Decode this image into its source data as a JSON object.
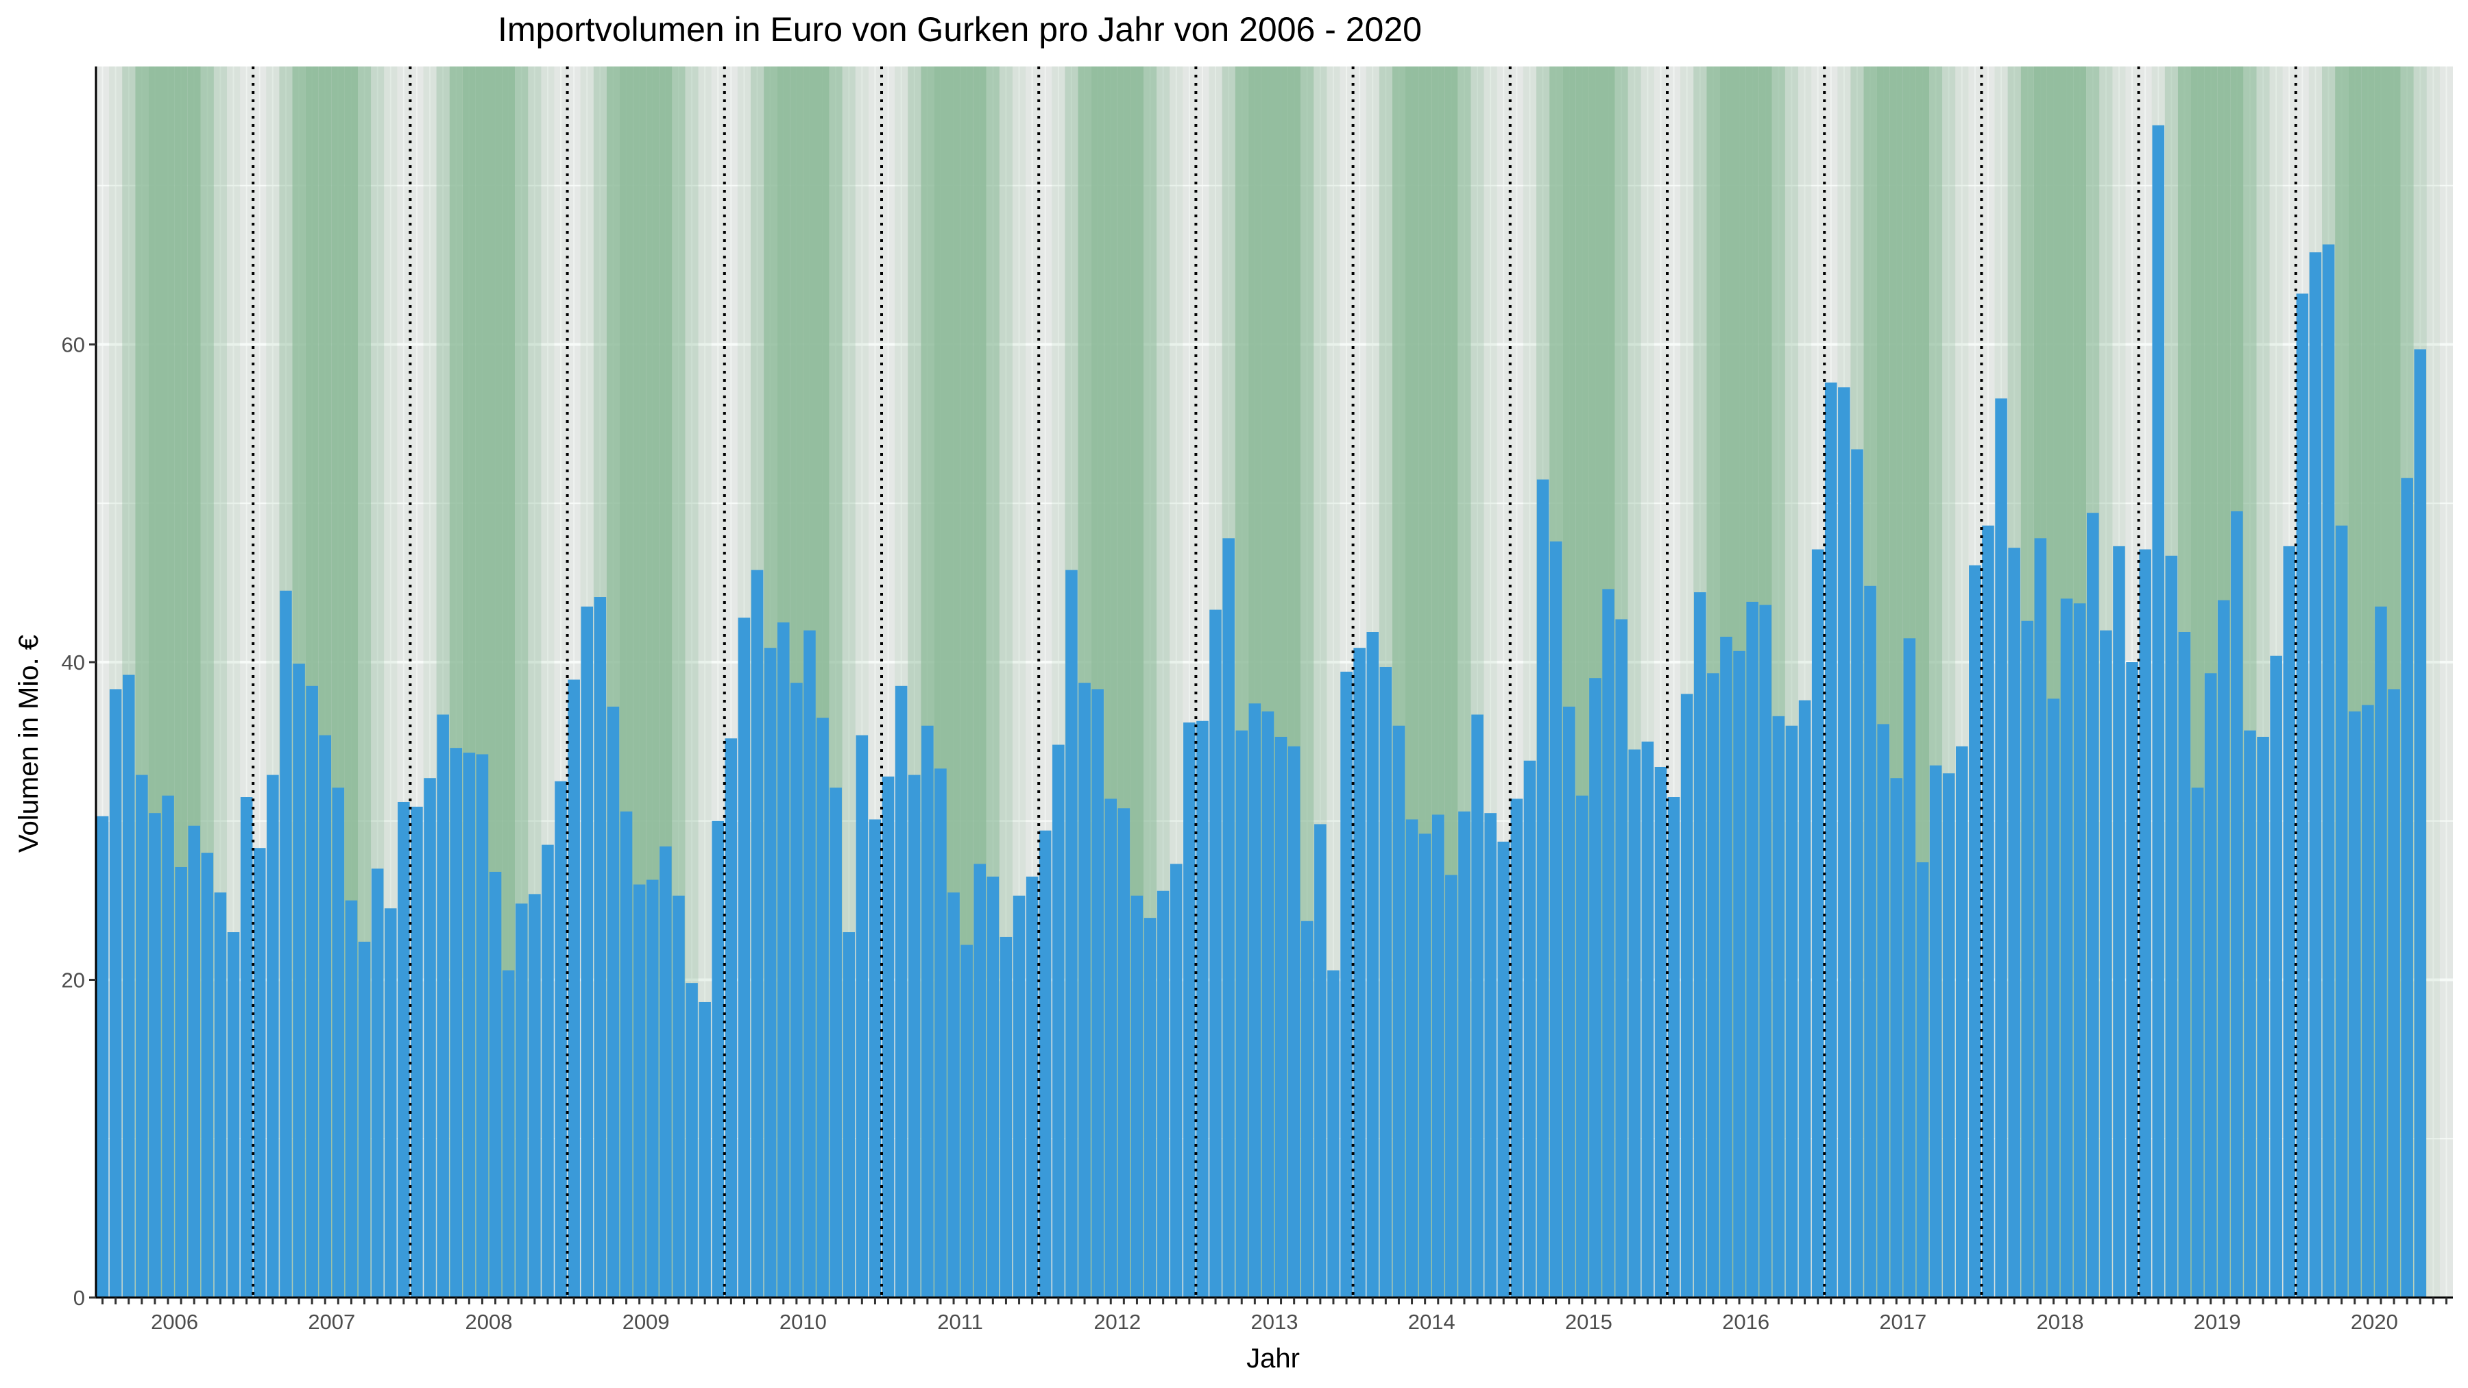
{
  "chart_data": {
    "type": "bar",
    "title": "Importvolumen in Euro von Gurken pro Jahr von 2006 - 2020",
    "xlabel": "Jahr",
    "ylabel": "Volumen in Mio. €",
    "ylim": [
      0,
      77.5
    ],
    "yticks": [
      0,
      20,
      40,
      60
    ],
    "years": [
      "2006",
      "2007",
      "2008",
      "2009",
      "2010",
      "2011",
      "2012",
      "2013",
      "2014",
      "2015",
      "2016",
      "2017",
      "2018",
      "2019",
      "2020"
    ],
    "months_per_year": 12,
    "grid": true,
    "legend": "none",
    "colors": {
      "bar": "#3a9ad9",
      "season": "#8fbc9b",
      "panel": "#ebebeb",
      "grid": "#ffffff",
      "divider": "#000000"
    },
    "values": [
      30.3,
      38.3,
      39.2,
      32.9,
      30.5,
      31.6,
      27.1,
      29.7,
      28.0,
      25.5,
      23.0,
      31.5,
      28.3,
      32.9,
      44.5,
      39.9,
      38.5,
      35.4,
      32.1,
      25.0,
      22.4,
      27.0,
      24.5,
      31.2,
      30.9,
      32.7,
      36.7,
      34.6,
      34.3,
      34.2,
      26.8,
      20.6,
      24.8,
      25.4,
      28.5,
      32.5,
      38.9,
      43.5,
      44.1,
      37.2,
      30.6,
      26.0,
      26.3,
      28.4,
      25.3,
      19.8,
      18.6,
      30.0,
      35.2,
      42.8,
      45.8,
      40.9,
      42.5,
      38.7,
      42.0,
      36.5,
      32.1,
      23.0,
      35.4,
      30.1,
      32.8,
      38.5,
      32.9,
      36.0,
      33.3,
      25.5,
      22.2,
      27.3,
      26.5,
      22.7,
      25.3,
      26.5,
      29.4,
      34.8,
      45.8,
      38.7,
      38.3,
      31.4,
      30.8,
      25.3,
      23.9,
      25.6,
      27.3,
      36.2,
      36.3,
      43.3,
      47.8,
      35.7,
      37.4,
      36.9,
      35.3,
      34.7,
      23.7,
      29.8,
      20.6,
      39.4,
      40.9,
      41.9,
      39.7,
      36.0,
      30.1,
      29.2,
      30.4,
      26.6,
      30.6,
      36.7,
      30.5,
      28.7,
      31.4,
      33.8,
      51.5,
      47.6,
      37.2,
      31.6,
      39.0,
      44.6,
      42.7,
      34.5,
      35.0,
      33.4,
      31.5,
      38.0,
      44.4,
      39.3,
      41.6,
      40.7,
      43.8,
      43.6,
      36.6,
      36.0,
      37.6,
      47.1,
      57.6,
      57.3,
      53.4,
      44.8,
      36.1,
      32.7,
      41.5,
      27.4,
      33.5,
      33.0,
      34.7,
      46.1,
      48.6,
      56.6,
      47.2,
      42.6,
      47.8,
      37.7,
      44.0,
      43.7,
      49.4,
      42.0,
      47.3,
      40.0,
      47.1,
      73.8,
      46.7,
      41.9,
      32.1,
      39.3,
      43.9,
      49.5,
      35.7,
      35.3,
      40.4,
      47.3,
      63.2,
      65.8,
      66.3,
      48.6,
      36.9,
      37.3,
      43.5,
      38.3,
      51.6,
      59.7
    ]
  }
}
